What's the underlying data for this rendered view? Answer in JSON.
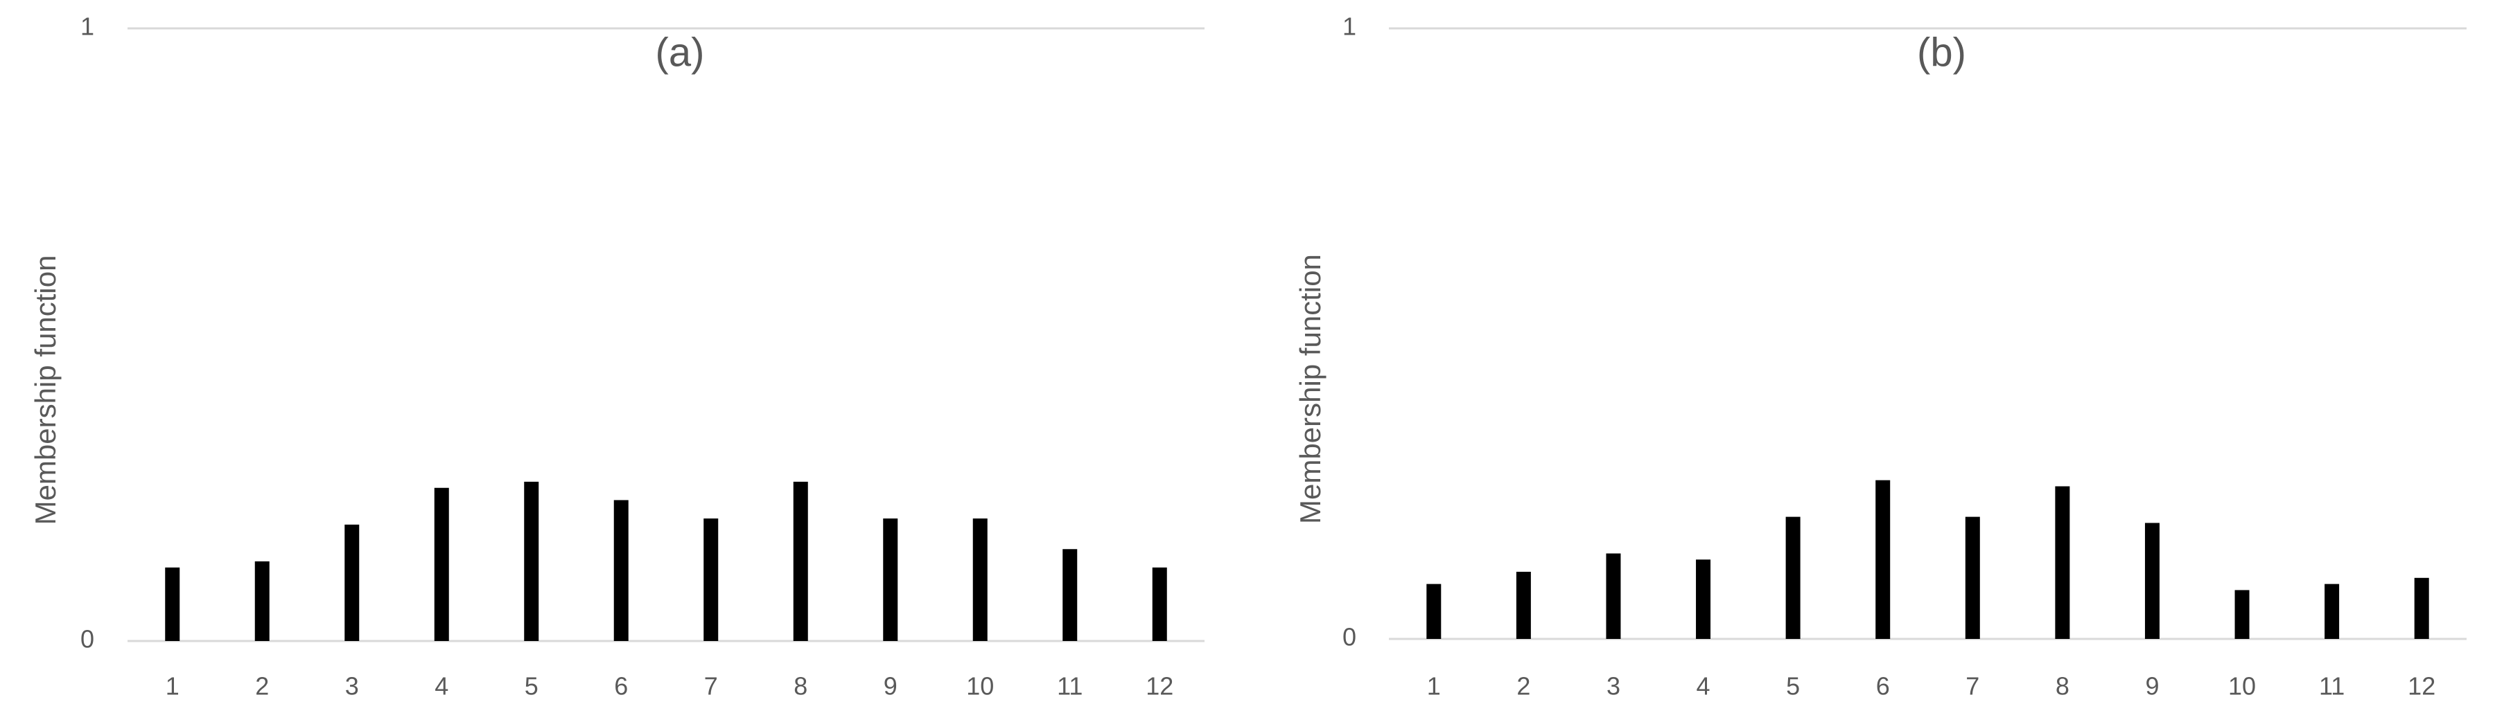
{
  "chart_data": [
    {
      "type": "bar",
      "title": "(a)",
      "y_label": "Membership function",
      "categories": [
        "1",
        "2",
        "3",
        "4",
        "5",
        "6",
        "7",
        "8",
        "9",
        "10",
        "11",
        "12"
      ],
      "values": [
        0.12,
        0.13,
        0.19,
        0.25,
        0.26,
        0.23,
        0.2,
        0.26,
        0.2,
        0.2,
        0.15,
        0.12
      ],
      "color": "#000000",
      "ylim": [
        0,
        1
      ],
      "yticks": [
        0,
        1
      ],
      "grid": true
    },
    {
      "type": "bar",
      "title": "(b)",
      "y_label": "Membership function",
      "categories": [
        "1",
        "2",
        "3",
        "4",
        "5",
        "6",
        "7",
        "8",
        "9",
        "10",
        "11",
        "12"
      ],
      "values": [
        0.09,
        0.11,
        0.14,
        0.13,
        0.2,
        0.26,
        0.2,
        0.25,
        0.19,
        0.08,
        0.09,
        0.1
      ],
      "color": "#000000",
      "ylim": [
        0,
        1
      ],
      "yticks": [
        0,
        1
      ],
      "grid": true
    }
  ]
}
